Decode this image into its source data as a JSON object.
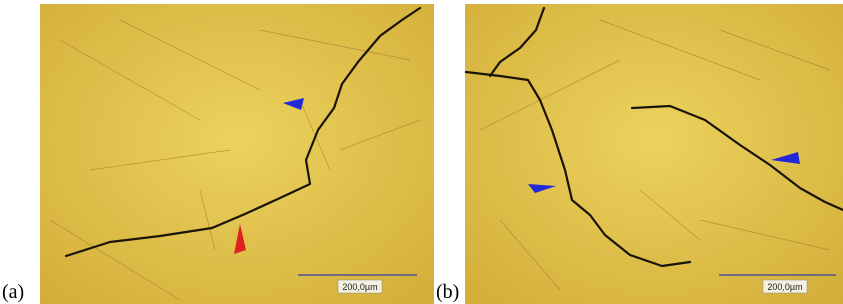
{
  "panels": [
    {
      "label": "(a)",
      "scale_label": "200,0µm"
    },
    {
      "label": "(b)",
      "scale_label": "200,0µm"
    }
  ]
}
